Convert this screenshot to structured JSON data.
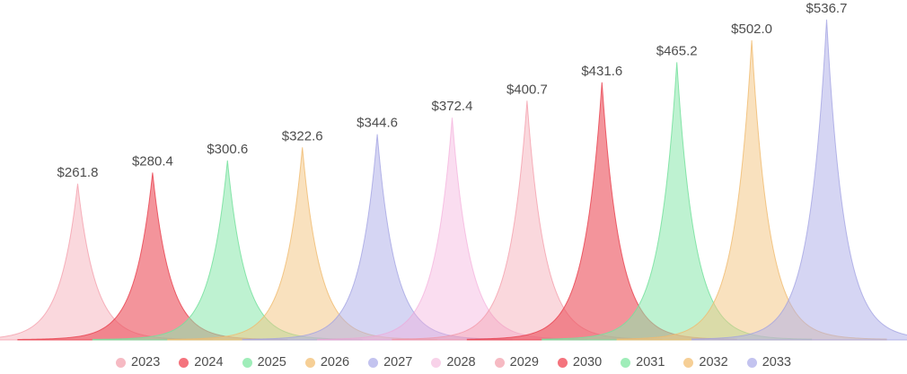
{
  "chart_data": {
    "type": "area",
    "title": "",
    "xlabel": "",
    "ylabel": "",
    "value_prefix": "$",
    "categories": [
      "2023",
      "2024",
      "2025",
      "2026",
      "2027",
      "2028",
      "2029",
      "2030",
      "2031",
      "2032",
      "2033"
    ],
    "values": [
      261.8,
      280.4,
      300.6,
      322.6,
      344.6,
      372.4,
      400.7,
      431.6,
      465.2,
      502.0,
      536.7
    ],
    "labels": [
      "$261.8",
      "$280.4",
      "$300.6",
      "$322.6",
      "$344.6",
      "$372.4",
      "$400.7",
      "$431.6",
      "$465.2",
      "$502.0",
      "$536.7"
    ],
    "ylim": [
      0,
      560
    ],
    "grid": false,
    "legend_position": "bottom",
    "series": [
      {
        "name": "2023",
        "value": 261.8,
        "label": "$261.8",
        "fill": "rgba(242,143,158,0.35)",
        "stroke": "rgba(242,143,158,0.65)",
        "legend_dot": "#F6BAC3"
      },
      {
        "name": "2024",
        "value": 280.4,
        "label": "$280.4",
        "fill": "rgba(236,82,94,0.62)",
        "stroke": "rgba(233,64,77,0.8)",
        "legend_dot": "#F4737D"
      },
      {
        "name": "2025",
        "value": 300.6,
        "label": "$300.6",
        "fill": "rgba(137,231,172,0.55)",
        "stroke": "rgba(118,224,158,0.85)",
        "legend_dot": "#9FEDB9"
      },
      {
        "name": "2026",
        "value": 322.6,
        "label": "$322.6",
        "fill": "rgba(243,197,131,0.52)",
        "stroke": "rgba(240,186,110,0.8)",
        "legend_dot": "#F6CF96"
      },
      {
        "name": "2027",
        "value": 344.6,
        "label": "$344.6",
        "fill": "rgba(175,175,232,0.52)",
        "stroke": "rgba(160,160,226,0.75)",
        "legend_dot": "#C3C3EF"
      },
      {
        "name": "2028",
        "value": 372.4,
        "label": "$372.4",
        "fill": "rgba(244,175,220,0.42)",
        "stroke": "rgba(242,157,212,0.55)",
        "legend_dot": "#F8D2E9"
      },
      {
        "name": "2029",
        "value": 400.7,
        "label": "$400.7",
        "fill": "rgba(242,143,158,0.35)",
        "stroke": "rgba(242,143,158,0.65)",
        "legend_dot": "#F6BAC3"
      },
      {
        "name": "2030",
        "value": 431.6,
        "label": "$431.6",
        "fill": "rgba(236,82,94,0.62)",
        "stroke": "rgba(233,64,77,0.8)",
        "legend_dot": "#F4737D"
      },
      {
        "name": "2031",
        "value": 465.2,
        "label": "$465.2",
        "fill": "rgba(137,231,172,0.55)",
        "stroke": "rgba(118,224,158,0.85)",
        "legend_dot": "#9FEDB9"
      },
      {
        "name": "2032",
        "value": 502.0,
        "label": "$502.0",
        "fill": "rgba(243,197,131,0.52)",
        "stroke": "rgba(240,186,110,0.8)",
        "legend_dot": "#F6CF96"
      },
      {
        "name": "2033",
        "value": 536.7,
        "label": "$536.7",
        "fill": "rgba(175,175,232,0.52)",
        "stroke": "rgba(160,160,226,0.75)",
        "legend_dot": "#C3C3EF"
      }
    ]
  },
  "colors": {
    "background": "#FFFFFF",
    "label_text": "#4D4D4D",
    "legend_text": "#4E4E4E"
  }
}
